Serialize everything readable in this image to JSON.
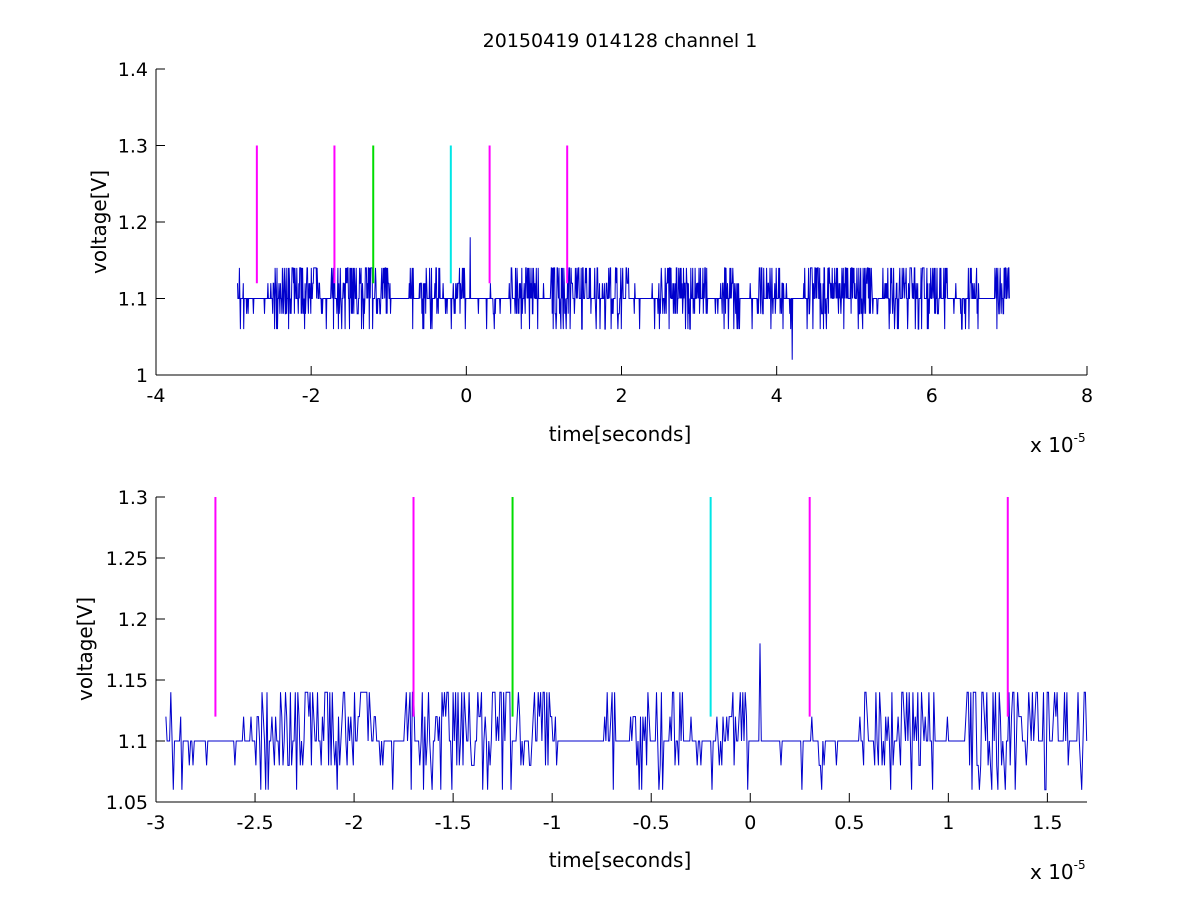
{
  "figure_title": "20150419 014128 channel 1",
  "colors": {
    "signal": "#0000cc",
    "magenta": "#ff00ff",
    "green": "#00dd00",
    "cyan": "#00e6e6",
    "axis": "#000000"
  },
  "chart_data": [
    {
      "type": "line",
      "title": "20150419 014128 channel 1",
      "xlabel": "time[seconds]",
      "ylabel": "voltage[V]",
      "x_exponent_label": "x 10",
      "x_exponent": "-5",
      "xlim": [
        -4e-05,
        8e-05
      ],
      "ylim": [
        1.0,
        1.4
      ],
      "xticks": [
        -4e-05,
        -2e-05,
        0,
        2e-05,
        4e-05,
        6e-05,
        8e-05
      ],
      "xtick_labels": [
        "-4",
        "-2",
        "0",
        "2",
        "4",
        "6",
        "8"
      ],
      "yticks": [
        1.0,
        1.1,
        1.2,
        1.3,
        1.4
      ],
      "ytick_labels": [
        "1",
        "1.1",
        "1.2",
        "1.3",
        "1.4"
      ],
      "grid": false,
      "series": [
        {
          "color": "#0000cc",
          "x_range": [
            -2.95e-05,
            7e-05
          ],
          "levels": [
            1.06,
            1.08,
            1.1,
            1.12,
            1.14
          ],
          "baseline": 1.1,
          "notable_points": [
            {
              "x": 5e-07,
              "y": 1.18
            },
            {
              "x": 4.2e-05,
              "y": 1.02
            }
          ]
        }
      ],
      "markers": [
        {
          "x": -2.7e-05,
          "y_top": 1.3,
          "color": "#ff00ff"
        },
        {
          "x": -1.7e-05,
          "y_top": 1.3,
          "color": "#ff00ff"
        },
        {
          "x": -1.2e-05,
          "y_top": 1.3,
          "color": "#00dd00"
        },
        {
          "x": -2e-06,
          "y_top": 1.3,
          "color": "#00e6e6"
        },
        {
          "x": 3e-06,
          "y_top": 1.3,
          "color": "#ff00ff"
        },
        {
          "x": 1.3e-05,
          "y_top": 1.3,
          "color": "#ff00ff"
        }
      ]
    },
    {
      "type": "line",
      "title": "",
      "xlabel": "time[seconds]",
      "ylabel": "voltage[V]",
      "x_exponent_label": "x 10",
      "x_exponent": "-5",
      "xlim": [
        -3e-05,
        1.7e-05
      ],
      "ylim": [
        1.05,
        1.3
      ],
      "xticks": [
        -3e-05,
        -2.5e-05,
        -2e-05,
        -1.5e-05,
        -1e-05,
        -5e-06,
        0,
        5e-06,
        1e-05,
        1.5e-05
      ],
      "xtick_labels": [
        "-3",
        "-2.5",
        "-2",
        "-1.5",
        "-1",
        "-0.5",
        "0",
        "0.5",
        "1",
        "1.5"
      ],
      "yticks": [
        1.05,
        1.1,
        1.15,
        1.2,
        1.25,
        1.3
      ],
      "ytick_labels": [
        "1.05",
        "1.1",
        "1.15",
        "1.2",
        "1.25",
        "1.3"
      ],
      "grid": false,
      "series": [
        {
          "color": "#0000cc",
          "x_range": [
            -2.95e-05,
            1.7e-05
          ],
          "levels": [
            1.06,
            1.08,
            1.1,
            1.12,
            1.14
          ],
          "baseline": 1.1,
          "notable_points": [
            {
              "x": 0.0,
              "y": 1.18
            }
          ]
        }
      ],
      "markers": [
        {
          "x": -2.7e-05,
          "y_top": 1.3,
          "color": "#ff00ff"
        },
        {
          "x": -1.7e-05,
          "y_top": 1.3,
          "color": "#ff00ff"
        },
        {
          "x": -1.2e-05,
          "y_top": 1.3,
          "color": "#00dd00"
        },
        {
          "x": -2e-06,
          "y_top": 1.3,
          "color": "#00e6e6"
        },
        {
          "x": 3e-06,
          "y_top": 1.3,
          "color": "#ff00ff"
        },
        {
          "x": 1.3e-05,
          "y_top": 1.3,
          "color": "#ff00ff"
        }
      ]
    }
  ]
}
